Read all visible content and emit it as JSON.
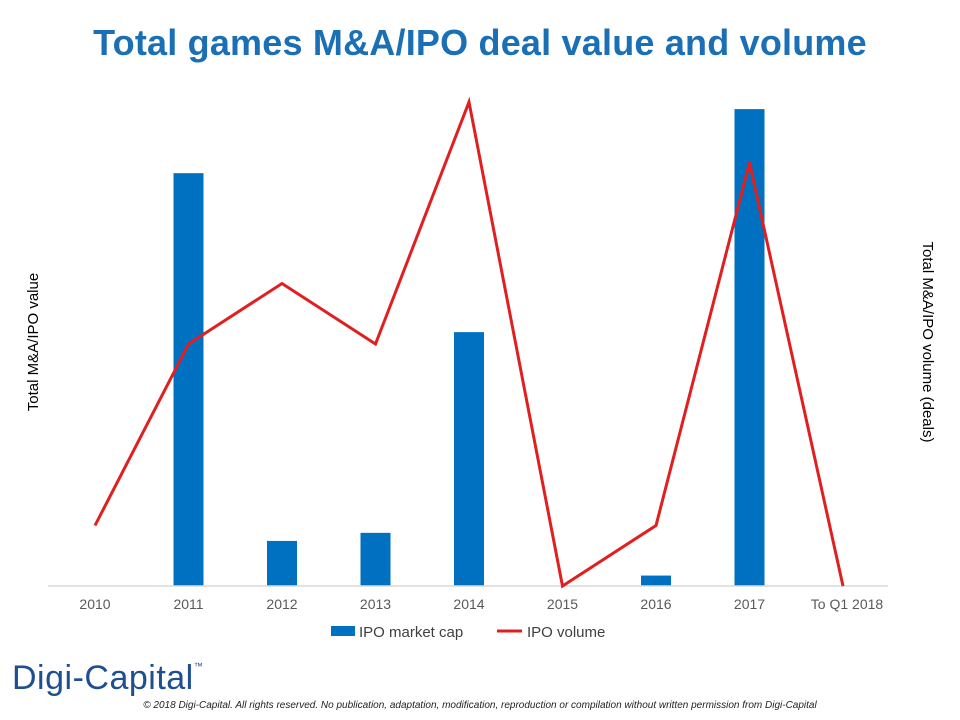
{
  "chart_data": {
    "type": "bar+line",
    "title": "Total games M&A/IPO deal value and volume",
    "categories": [
      "2010",
      "2011",
      "2012",
      "2013",
      "2014",
      "2015",
      "2016",
      "2017",
      "To Q1 2018"
    ],
    "series": [
      {
        "name": "IPO market cap",
        "type": "bar",
        "axis": "left",
        "color": "#0070c0",
        "values": [
          0,
          87,
          9.5,
          11.2,
          53.5,
          0,
          2.2,
          100.5,
          0
        ]
      },
      {
        "name": "IPO volume",
        "type": "line",
        "axis": "right",
        "color": "#e02020",
        "values": [
          1,
          4,
          5,
          4,
          8,
          0,
          1,
          7,
          0
        ]
      }
    ],
    "ylabel": "Total M&A/IPO value",
    "y2label": "Total M&A/IPO volume (deals)",
    "ylim": [
      0,
      102
    ],
    "y2lim": [
      0,
      8
    ],
    "grid": false,
    "legend": "bottom-center"
  },
  "branding": {
    "logo_text": "Digi-Capital",
    "logo_tm": "™",
    "copyright": "© 2018 Digi-Capital. All rights reserved. No publication, adaptation, modification, reproduction or compilation without written permission from Digi-Capital"
  }
}
